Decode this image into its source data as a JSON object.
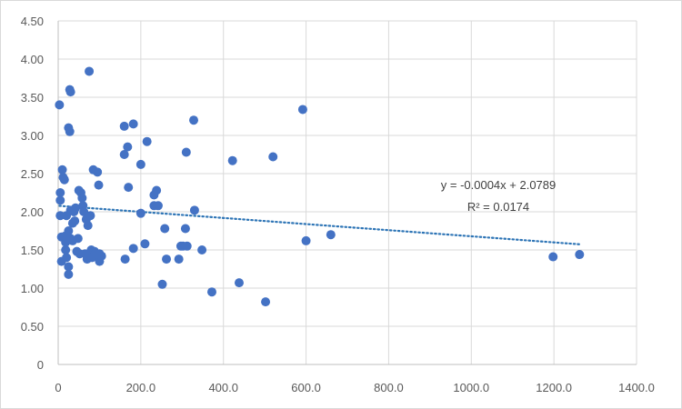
{
  "chart_data": {
    "type": "scatter",
    "title": "",
    "xlabel": "",
    "ylabel": "",
    "xlim": [
      0,
      1400
    ],
    "ylim": [
      0,
      4.5
    ],
    "x_ticks": [
      "0",
      "200.0",
      "400.0",
      "600.0",
      "800.0",
      "1000.0",
      "1200.0",
      "1400.0"
    ],
    "y_ticks": [
      "0",
      "0.50",
      "1.00",
      "1.50",
      "2.00",
      "2.50",
      "3.00",
      "3.50",
      "4.00",
      "4.50"
    ],
    "grid": true,
    "legend": "none",
    "marker_color": "#4472c4",
    "trendline": {
      "slope": -0.0004,
      "intercept": 2.0789,
      "color": "#2e75b6",
      "style": "dotted",
      "equation_label": "y = -0.0004x + 2.0789",
      "r2_label": "R² = 0.0174"
    },
    "points": [
      [
        3,
        3.4
      ],
      [
        5,
        2.25
      ],
      [
        5,
        2.15
      ],
      [
        5,
        1.95
      ],
      [
        8,
        1.67
      ],
      [
        8,
        1.35
      ],
      [
        10,
        2.55
      ],
      [
        12,
        2.45
      ],
      [
        15,
        2.42
      ],
      [
        16,
        1.68
      ],
      [
        18,
        1.6
      ],
      [
        18,
        1.5
      ],
      [
        20,
        1.4
      ],
      [
        20,
        1.95
      ],
      [
        22,
        1.65
      ],
      [
        25,
        3.1
      ],
      [
        25,
        1.75
      ],
      [
        25,
        1.28
      ],
      [
        25,
        1.18
      ],
      [
        28,
        3.6
      ],
      [
        28,
        3.05
      ],
      [
        30,
        3.57
      ],
      [
        30,
        2.02
      ],
      [
        30,
        1.65
      ],
      [
        35,
        1.85
      ],
      [
        35,
        1.62
      ],
      [
        38,
        2.0
      ],
      [
        40,
        1.88
      ],
      [
        42,
        2.05
      ],
      [
        45,
        1.48
      ],
      [
        48,
        1.65
      ],
      [
        50,
        2.28
      ],
      [
        52,
        1.45
      ],
      [
        55,
        2.25
      ],
      [
        58,
        2.18
      ],
      [
        60,
        2.08
      ],
      [
        62,
        2.0
      ],
      [
        65,
        1.45
      ],
      [
        68,
        1.9
      ],
      [
        70,
        1.38
      ],
      [
        72,
        1.82
      ],
      [
        75,
        3.84
      ],
      [
        78,
        1.95
      ],
      [
        80,
        1.5
      ],
      [
        82,
        1.4
      ],
      [
        85,
        2.55
      ],
      [
        88,
        1.48
      ],
      [
        90,
        1.45
      ],
      [
        95,
        2.52
      ],
      [
        98,
        2.35
      ],
      [
        100,
        1.45
      ],
      [
        100,
        1.35
      ],
      [
        105,
        1.42
      ],
      [
        160,
        3.12
      ],
      [
        160,
        2.75
      ],
      [
        162,
        1.38
      ],
      [
        168,
        2.85
      ],
      [
        170,
        2.32
      ],
      [
        182,
        3.15
      ],
      [
        182,
        1.52
      ],
      [
        200,
        2.62
      ],
      [
        200,
        1.98
      ],
      [
        210,
        1.58
      ],
      [
        215,
        2.92
      ],
      [
        232,
        2.08
      ],
      [
        232,
        2.22
      ],
      [
        238,
        2.28
      ],
      [
        242,
        2.08
      ],
      [
        252,
        1.05
      ],
      [
        258,
        1.78
      ],
      [
        262,
        1.38
      ],
      [
        292,
        1.38
      ],
      [
        297,
        1.55
      ],
      [
        302,
        1.55
      ],
      [
        308,
        1.78
      ],
      [
        310,
        2.78
      ],
      [
        312,
        1.55
      ],
      [
        328,
        3.2
      ],
      [
        330,
        2.02
      ],
      [
        348,
        1.5
      ],
      [
        372,
        0.95
      ],
      [
        422,
        2.67
      ],
      [
        438,
        1.07
      ],
      [
        502,
        0.82
      ],
      [
        520,
        2.72
      ],
      [
        592,
        3.34
      ],
      [
        600,
        1.62
      ],
      [
        660,
        1.7
      ],
      [
        1198,
        1.41
      ],
      [
        1262,
        1.44
      ]
    ]
  }
}
